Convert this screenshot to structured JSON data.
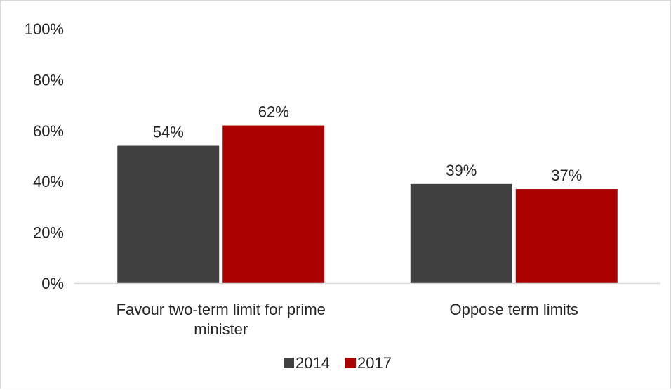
{
  "chart_data": {
    "type": "bar",
    "categories": [
      "Favour two-term limit for prime minister",
      "Oppose term limits"
    ],
    "category_lines": [
      [
        "Favour two-term limit for prime",
        "minister"
      ],
      [
        "Oppose term limits"
      ]
    ],
    "series": [
      {
        "name": "2014",
        "values": [
          54,
          39
        ],
        "labels": [
          "54%",
          "39%"
        ],
        "color": "#404040"
      },
      {
        "name": "2017",
        "values": [
          62,
          37
        ],
        "labels": [
          "62%",
          "37%"
        ],
        "color": "#aa0000"
      }
    ],
    "y_ticks": [
      0,
      20,
      40,
      60,
      80,
      100
    ],
    "y_tick_labels": [
      "0%",
      "20%",
      "40%",
      "60%",
      "80%",
      "100%"
    ],
    "ylim": [
      0,
      100
    ],
    "grid": false,
    "legend_position": "bottom"
  }
}
